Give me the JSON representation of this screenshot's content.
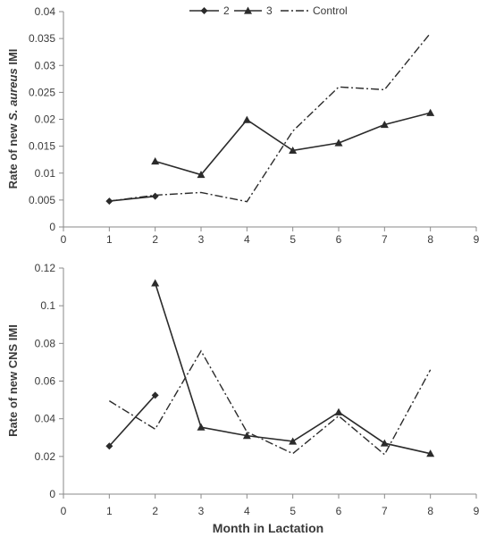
{
  "chart_data": [
    {
      "type": "line",
      "ylabel_prefix": "Rate of new ",
      "ylabel_italic": "S. aureus",
      "ylabel_suffix": " IMI",
      "xlabel": "",
      "xlim": [
        0,
        9
      ],
      "ylim": [
        0,
        0.04
      ],
      "xticks": [
        "0",
        "1",
        "2",
        "3",
        "4",
        "5",
        "6",
        "7",
        "8",
        "9"
      ],
      "yticks": [
        "0",
        "0.005",
        "0.01",
        "0.015",
        "0.02",
        "0.025",
        "0.03",
        "0.035",
        "0.04"
      ],
      "grid": false,
      "legend": "top",
      "series": [
        {
          "name": "2",
          "marker": "diamond",
          "style": "solid",
          "color": "#2b2b2b",
          "x": [
            1,
            2
          ],
          "values": [
            0.0048,
            0.0057
          ]
        },
        {
          "name": "3",
          "marker": "triangle",
          "style": "solid",
          "color": "#2b2b2b",
          "x": [
            2,
            3,
            4,
            5,
            6,
            7,
            8
          ],
          "values": [
            0.0122,
            0.0097,
            0.0199,
            0.0142,
            0.0156,
            0.019,
            0.0212
          ]
        },
        {
          "name": "Control",
          "marker": "none",
          "style": "dashdot",
          "color": "#2b2b2b",
          "x": [
            1,
            2,
            3,
            4,
            5,
            6,
            7,
            8
          ],
          "values": [
            0.0048,
            0.0059,
            0.0064,
            0.0047,
            0.0178,
            0.026,
            0.0255,
            0.036
          ]
        }
      ]
    },
    {
      "type": "line",
      "ylabel_prefix": "Rate of new CNS IMI",
      "ylabel_italic": "",
      "ylabel_suffix": "",
      "xlabel": "Month in Lactation",
      "xlim": [
        0,
        9
      ],
      "ylim": [
        0,
        0.12
      ],
      "xticks": [
        "0",
        "1",
        "2",
        "3",
        "4",
        "5",
        "6",
        "7",
        "8",
        "9"
      ],
      "yticks": [
        "0",
        "0.02",
        "0.04",
        "0.06",
        "0.08",
        "0.1",
        "0.12"
      ],
      "grid": false,
      "series": [
        {
          "name": "2",
          "marker": "diamond",
          "style": "solid",
          "color": "#2b2b2b",
          "x": [
            1,
            2
          ],
          "values": [
            0.0255,
            0.0525
          ]
        },
        {
          "name": "3",
          "marker": "triangle",
          "style": "solid",
          "color": "#2b2b2b",
          "x": [
            2,
            3,
            4,
            5,
            6,
            7,
            8
          ],
          "values": [
            0.112,
            0.0355,
            0.031,
            0.028,
            0.0435,
            0.027,
            0.0215
          ]
        },
        {
          "name": "Control",
          "marker": "none",
          "style": "dashdot",
          "color": "#2b2b2b",
          "x": [
            1,
            2,
            3,
            4,
            5,
            6,
            7,
            8
          ],
          "values": [
            0.0495,
            0.0345,
            0.076,
            0.033,
            0.0215,
            0.0415,
            0.021,
            0.066
          ]
        }
      ]
    }
  ]
}
